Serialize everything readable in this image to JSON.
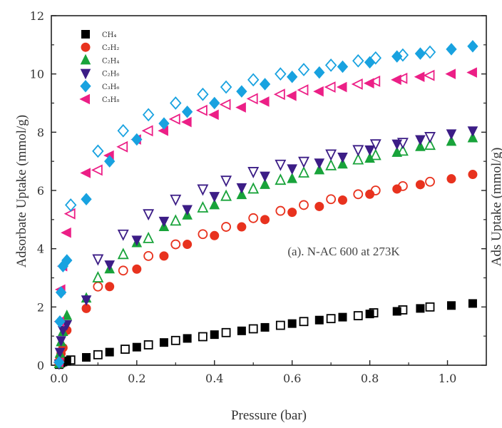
{
  "chart_data": {
    "type": "scatter",
    "title": "",
    "xlabel": "Pressure (bar)",
    "ylabel": "Adsorbate Uptake (mmol/g)",
    "xlim": [
      -0.02,
      1.1
    ],
    "ylim": [
      0,
      12
    ],
    "x_ticks": [
      "0.0",
      "0.2",
      "0.4",
      "0.6",
      "0.8",
      "1.0"
    ],
    "y_ticks": [
      "0",
      "2",
      "4",
      "6",
      "8",
      "10",
      "12"
    ],
    "annotation": "(a). N-AC 600 at 273K",
    "right_axis_label_fragment": "Ads Uptake (mmol/g)",
    "legend_position": "top-left",
    "filled_is": "adsorption",
    "open_is": "desorption",
    "series": [
      {
        "name": "CH₄",
        "color": "#000000",
        "marker": "square",
        "adsorption": [
          [
            0.0,
            0.02
          ],
          [
            0.002,
            0.05
          ],
          [
            0.005,
            0.08
          ],
          [
            0.01,
            0.11
          ],
          [
            0.02,
            0.15
          ],
          [
            0.07,
            0.27
          ],
          [
            0.13,
            0.45
          ],
          [
            0.2,
            0.62
          ],
          [
            0.27,
            0.78
          ],
          [
            0.33,
            0.92
          ],
          [
            0.4,
            1.05
          ],
          [
            0.47,
            1.18
          ],
          [
            0.53,
            1.3
          ],
          [
            0.6,
            1.43
          ],
          [
            0.67,
            1.55
          ],
          [
            0.73,
            1.65
          ],
          [
            0.8,
            1.76
          ],
          [
            0.87,
            1.85
          ],
          [
            0.93,
            1.95
          ],
          [
            1.01,
            2.05
          ],
          [
            1.065,
            2.12
          ]
        ],
        "desorption": [
          [
            0.03,
            0.18
          ],
          [
            0.1,
            0.36
          ],
          [
            0.17,
            0.55
          ],
          [
            0.23,
            0.7
          ],
          [
            0.3,
            0.85
          ],
          [
            0.37,
            0.98
          ],
          [
            0.43,
            1.12
          ],
          [
            0.5,
            1.25
          ],
          [
            0.57,
            1.37
          ],
          [
            0.63,
            1.5
          ],
          [
            0.7,
            1.6
          ],
          [
            0.77,
            1.7
          ],
          [
            0.81,
            1.8
          ],
          [
            0.885,
            1.9
          ],
          [
            0.955,
            2.0
          ]
        ]
      },
      {
        "name": "C₂H₂",
        "color": "#e8321e",
        "marker": "circle",
        "adsorption": [
          [
            0.0,
            0.05
          ],
          [
            0.002,
            0.2
          ],
          [
            0.005,
            0.4
          ],
          [
            0.01,
            0.6
          ],
          [
            0.02,
            1.2
          ],
          [
            0.07,
            1.95
          ],
          [
            0.13,
            2.7
          ],
          [
            0.2,
            3.3
          ],
          [
            0.27,
            3.75
          ],
          [
            0.33,
            4.15
          ],
          [
            0.4,
            4.45
          ],
          [
            0.47,
            4.75
          ],
          [
            0.53,
            5.0
          ],
          [
            0.6,
            5.25
          ],
          [
            0.67,
            5.45
          ],
          [
            0.73,
            5.67
          ],
          [
            0.8,
            5.87
          ],
          [
            0.87,
            6.05
          ],
          [
            0.93,
            6.2
          ],
          [
            1.01,
            6.4
          ],
          [
            1.065,
            6.55
          ]
        ],
        "desorption": [
          [
            0.1,
            2.7
          ],
          [
            0.165,
            3.25
          ],
          [
            0.23,
            3.75
          ],
          [
            0.3,
            4.15
          ],
          [
            0.37,
            4.5
          ],
          [
            0.43,
            4.75
          ],
          [
            0.5,
            5.05
          ],
          [
            0.57,
            5.3
          ],
          [
            0.63,
            5.5
          ],
          [
            0.7,
            5.7
          ],
          [
            0.77,
            5.87
          ],
          [
            0.815,
            6.0
          ],
          [
            0.885,
            6.15
          ],
          [
            0.955,
            6.3
          ]
        ]
      },
      {
        "name": "C₂H₄",
        "color": "#18a33a",
        "marker": "triangle-up",
        "adsorption": [
          [
            0.0,
            0.05
          ],
          [
            0.002,
            0.4
          ],
          [
            0.005,
            0.8
          ],
          [
            0.01,
            1.15
          ],
          [
            0.02,
            1.7
          ],
          [
            0.07,
            2.3
          ],
          [
            0.13,
            3.3
          ],
          [
            0.2,
            4.2
          ],
          [
            0.27,
            4.75
          ],
          [
            0.33,
            5.15
          ],
          [
            0.4,
            5.5
          ],
          [
            0.47,
            5.85
          ],
          [
            0.53,
            6.2
          ],
          [
            0.6,
            6.4
          ],
          [
            0.67,
            6.7
          ],
          [
            0.73,
            6.9
          ],
          [
            0.8,
            7.1
          ],
          [
            0.87,
            7.3
          ],
          [
            0.93,
            7.5
          ],
          [
            1.01,
            7.68
          ],
          [
            1.065,
            7.8
          ]
        ],
        "desorption": [
          [
            0.1,
            3.0
          ],
          [
            0.165,
            3.8
          ],
          [
            0.23,
            4.35
          ],
          [
            0.3,
            4.95
          ],
          [
            0.37,
            5.4
          ],
          [
            0.43,
            5.8
          ],
          [
            0.5,
            6.05
          ],
          [
            0.57,
            6.35
          ],
          [
            0.63,
            6.6
          ],
          [
            0.7,
            6.85
          ],
          [
            0.77,
            7.05
          ],
          [
            0.815,
            7.2
          ],
          [
            0.885,
            7.35
          ],
          [
            0.955,
            7.55
          ]
        ]
      },
      {
        "name": "C₂H₆",
        "color": "#3c1d86",
        "marker": "triangle-down",
        "adsorption": [
          [
            0.0,
            0.05
          ],
          [
            0.002,
            0.45
          ],
          [
            0.005,
            0.85
          ],
          [
            0.01,
            1.2
          ],
          [
            0.02,
            1.4
          ],
          [
            0.07,
            2.25
          ],
          [
            0.13,
            3.45
          ],
          [
            0.2,
            4.3
          ],
          [
            0.27,
            4.95
          ],
          [
            0.33,
            5.35
          ],
          [
            0.4,
            5.8
          ],
          [
            0.47,
            6.1
          ],
          [
            0.53,
            6.5
          ],
          [
            0.6,
            6.75
          ],
          [
            0.67,
            6.95
          ],
          [
            0.73,
            7.15
          ],
          [
            0.8,
            7.4
          ],
          [
            0.87,
            7.6
          ],
          [
            0.93,
            7.75
          ],
          [
            1.01,
            7.95
          ],
          [
            1.065,
            8.05
          ]
        ],
        "desorption": [
          [
            0.1,
            3.65
          ],
          [
            0.165,
            4.5
          ],
          [
            0.23,
            5.2
          ],
          [
            0.3,
            5.7
          ],
          [
            0.37,
            6.05
          ],
          [
            0.43,
            6.35
          ],
          [
            0.5,
            6.65
          ],
          [
            0.57,
            6.9
          ],
          [
            0.63,
            7.0
          ],
          [
            0.7,
            7.25
          ],
          [
            0.77,
            7.4
          ],
          [
            0.815,
            7.6
          ],
          [
            0.885,
            7.65
          ],
          [
            0.955,
            7.85
          ]
        ]
      },
      {
        "name": "C₃H₆",
        "color": "#18a2e0",
        "marker": "diamond",
        "adsorption": [
          [
            0.0,
            0.1
          ],
          [
            0.002,
            1.5
          ],
          [
            0.005,
            2.5
          ],
          [
            0.01,
            3.4
          ],
          [
            0.02,
            3.6
          ],
          [
            0.07,
            5.7
          ],
          [
            0.13,
            7.0
          ],
          [
            0.2,
            7.75
          ],
          [
            0.27,
            8.3
          ],
          [
            0.33,
            8.7
          ],
          [
            0.4,
            9.0
          ],
          [
            0.47,
            9.4
          ],
          [
            0.53,
            9.65
          ],
          [
            0.6,
            9.9
          ],
          [
            0.67,
            10.05
          ],
          [
            0.73,
            10.25
          ],
          [
            0.8,
            10.4
          ],
          [
            0.87,
            10.6
          ],
          [
            0.93,
            10.7
          ],
          [
            1.01,
            10.85
          ],
          [
            1.065,
            10.95
          ]
        ],
        "desorption": [
          [
            0.03,
            5.5
          ],
          [
            0.1,
            7.35
          ],
          [
            0.165,
            8.05
          ],
          [
            0.23,
            8.6
          ],
          [
            0.3,
            9.0
          ],
          [
            0.37,
            9.3
          ],
          [
            0.43,
            9.55
          ],
          [
            0.5,
            9.8
          ],
          [
            0.57,
            10.0
          ],
          [
            0.63,
            10.15
          ],
          [
            0.7,
            10.3
          ],
          [
            0.77,
            10.45
          ],
          [
            0.815,
            10.55
          ],
          [
            0.885,
            10.65
          ],
          [
            0.955,
            10.75
          ]
        ]
      },
      {
        "name": "C₃H₈",
        "color": "#ec1f86",
        "marker": "triangle-left",
        "adsorption": [
          [
            0.0,
            0.1
          ],
          [
            0.002,
            1.5
          ],
          [
            0.005,
            2.6
          ],
          [
            0.01,
            3.4
          ],
          [
            0.02,
            4.55
          ],
          [
            0.07,
            6.6
          ],
          [
            0.13,
            7.2
          ],
          [
            0.2,
            7.75
          ],
          [
            0.27,
            8.05
          ],
          [
            0.33,
            8.35
          ],
          [
            0.4,
            8.6
          ],
          [
            0.47,
            8.85
          ],
          [
            0.53,
            9.05
          ],
          [
            0.6,
            9.25
          ],
          [
            0.67,
            9.4
          ],
          [
            0.73,
            9.55
          ],
          [
            0.8,
            9.68
          ],
          [
            0.87,
            9.8
          ],
          [
            0.93,
            9.9
          ],
          [
            1.01,
            10.0
          ],
          [
            1.065,
            10.05
          ]
        ],
        "desorption": [
          [
            0.03,
            5.2
          ],
          [
            0.1,
            6.7
          ],
          [
            0.165,
            7.5
          ],
          [
            0.23,
            8.05
          ],
          [
            0.3,
            8.45
          ],
          [
            0.37,
            8.75
          ],
          [
            0.43,
            8.95
          ],
          [
            0.5,
            9.15
          ],
          [
            0.57,
            9.3
          ],
          [
            0.63,
            9.45
          ],
          [
            0.7,
            9.55
          ],
          [
            0.77,
            9.65
          ],
          [
            0.815,
            9.75
          ],
          [
            0.885,
            9.85
          ],
          [
            0.955,
            9.95
          ]
        ]
      }
    ]
  }
}
